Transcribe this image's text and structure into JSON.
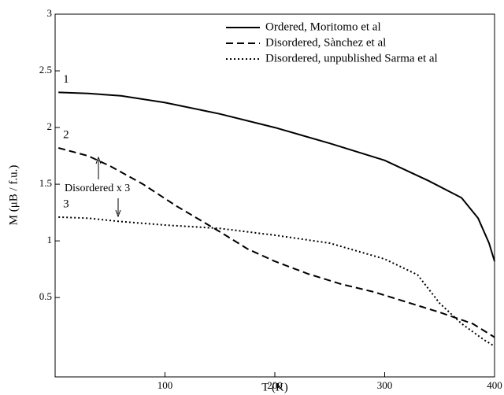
{
  "chart_data": {
    "type": "line",
    "x_label": "T (K)",
    "y_label": "M (μB / f.u.)",
    "xlim": [
      0,
      400
    ],
    "ylim": [
      -0.2,
      3.0
    ],
    "xticks": [
      100,
      200,
      300,
      400
    ],
    "yticks": [
      0.5,
      1.0,
      1.5,
      2.0,
      2.5,
      3.0
    ],
    "series": [
      {
        "name": "Ordered, Moritomo et al",
        "color": "#000",
        "dash": "solid",
        "curve_label": "1",
        "x": [
          3,
          30,
          60,
          100,
          150,
          200,
          250,
          300,
          340,
          370,
          385,
          395,
          400
        ],
        "values": [
          2.31,
          2.3,
          2.28,
          2.22,
          2.12,
          2.0,
          1.86,
          1.71,
          1.53,
          1.38,
          1.2,
          0.98,
          0.82
        ]
      },
      {
        "name": "Disordered,  Sànchez et al",
        "color": "#000",
        "dash": "dashed",
        "curve_label": "2",
        "x": [
          3,
          30,
          50,
          80,
          110,
          150,
          175,
          200,
          230,
          260,
          290,
          320,
          350,
          380,
          400
        ],
        "values": [
          1.82,
          1.75,
          1.66,
          1.5,
          1.31,
          1.08,
          0.93,
          0.82,
          0.71,
          0.62,
          0.55,
          0.46,
          0.37,
          0.27,
          0.15
        ]
      },
      {
        "name": "Disordered, unpublished Sarma et al",
        "color": "#000",
        "dash": "dotted",
        "curve_label": "3",
        "x": [
          3,
          30,
          60,
          100,
          150,
          200,
          250,
          300,
          330,
          350,
          370,
          390,
          400
        ],
        "values": [
          1.21,
          1.2,
          1.17,
          1.14,
          1.11,
          1.05,
          0.98,
          0.84,
          0.7,
          0.45,
          0.27,
          0.13,
          0.07
        ]
      }
    ],
    "annotation": "Disordered x 3"
  }
}
